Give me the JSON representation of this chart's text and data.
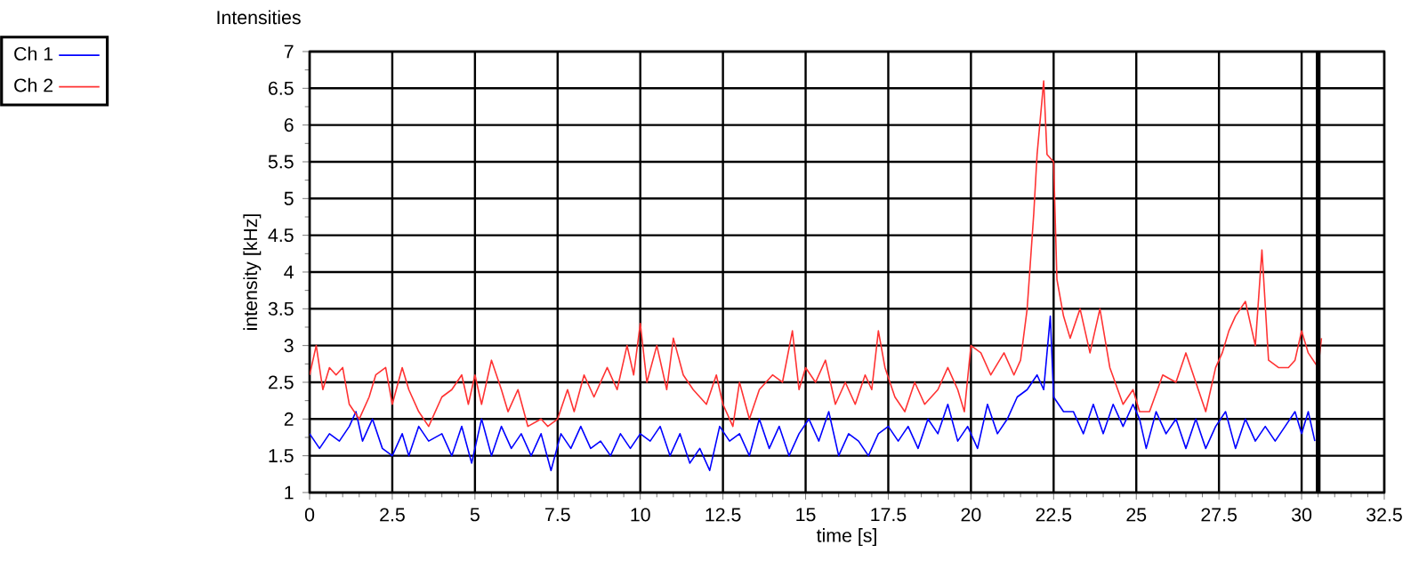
{
  "chart_data": {
    "type": "line",
    "title": "Intensities",
    "xlabel": "time [s]",
    "ylabel": "intensity [kHz]",
    "xlim": [
      0,
      32.5
    ],
    "ylim": [
      1,
      7
    ],
    "xticks": [
      0,
      2.5,
      5,
      7.5,
      10,
      12.5,
      15,
      17.5,
      20,
      22.5,
      25,
      27.5,
      30,
      32.5
    ],
    "yticks": [
      1,
      1.5,
      2,
      2.5,
      3,
      3.5,
      4,
      4.5,
      5,
      5.5,
      6,
      6.5,
      7
    ],
    "grid": true,
    "legend": "top left",
    "marker": "none",
    "line_style": "solid",
    "ref_lines": [
      {
        "axis": "x",
        "value": 30.5,
        "color": "#000000"
      }
    ],
    "series": [
      {
        "name": "Ch 1",
        "color": "#0000ff",
        "x": [
          0,
          0.3,
          0.6,
          0.9,
          1.2,
          1.4,
          1.6,
          1.9,
          2.2,
          2.5,
          2.8,
          3.0,
          3.3,
          3.6,
          4.0,
          4.3,
          4.6,
          4.9,
          5.2,
          5.5,
          5.8,
          6.1,
          6.4,
          6.7,
          7.0,
          7.3,
          7.6,
          7.9,
          8.2,
          8.5,
          8.8,
          9.1,
          9.4,
          9.7,
          10.0,
          10.3,
          10.6,
          10.9,
          11.2,
          11.5,
          11.8,
          12.1,
          12.4,
          12.7,
          13.0,
          13.3,
          13.6,
          13.9,
          14.2,
          14.5,
          14.8,
          15.1,
          15.4,
          15.7,
          16.0,
          16.3,
          16.6,
          16.9,
          17.2,
          17.5,
          17.8,
          18.1,
          18.4,
          18.7,
          19.0,
          19.3,
          19.6,
          19.9,
          20.2,
          20.5,
          20.8,
          21.1,
          21.4,
          21.7,
          22.0,
          22.2,
          22.4,
          22.5,
          22.8,
          23.1,
          23.4,
          23.7,
          24.0,
          24.3,
          24.6,
          24.9,
          25.1,
          25.3,
          25.6,
          25.9,
          26.2,
          26.5,
          26.8,
          27.1,
          27.4,
          27.7,
          28.0,
          28.3,
          28.6,
          28.9,
          29.2,
          29.5,
          29.8,
          30.0,
          30.2,
          30.4
        ],
        "values": [
          1.8,
          1.6,
          1.8,
          1.7,
          1.9,
          2.1,
          1.7,
          2.0,
          1.6,
          1.5,
          1.8,
          1.5,
          1.9,
          1.7,
          1.8,
          1.5,
          1.9,
          1.4,
          2.0,
          1.5,
          1.9,
          1.6,
          1.8,
          1.5,
          1.8,
          1.3,
          1.8,
          1.6,
          1.9,
          1.6,
          1.7,
          1.5,
          1.8,
          1.6,
          1.8,
          1.7,
          1.9,
          1.5,
          1.8,
          1.4,
          1.6,
          1.3,
          1.9,
          1.7,
          1.8,
          1.5,
          2.0,
          1.6,
          1.9,
          1.5,
          1.8,
          2.0,
          1.7,
          2.1,
          1.5,
          1.8,
          1.7,
          1.5,
          1.8,
          1.9,
          1.7,
          1.9,
          1.6,
          2.0,
          1.8,
          2.2,
          1.7,
          1.9,
          1.6,
          2.2,
          1.8,
          2.0,
          2.3,
          2.4,
          2.6,
          2.4,
          3.4,
          2.3,
          2.1,
          2.1,
          1.8,
          2.2,
          1.8,
          2.2,
          1.9,
          2.2,
          2.0,
          1.6,
          2.1,
          1.8,
          2.0,
          1.6,
          2.0,
          1.6,
          1.9,
          2.1,
          1.6,
          2.0,
          1.7,
          1.9,
          1.7,
          1.9,
          2.1,
          1.8,
          2.1,
          1.7
        ]
      },
      {
        "name": "Ch 2",
        "color": "#ff3333",
        "x": [
          0,
          0.2,
          0.4,
          0.6,
          0.8,
          1.0,
          1.2,
          1.5,
          1.8,
          2.0,
          2.3,
          2.5,
          2.8,
          3.0,
          3.3,
          3.6,
          4.0,
          4.3,
          4.6,
          4.8,
          5.0,
          5.2,
          5.5,
          5.8,
          6.0,
          6.3,
          6.6,
          7.0,
          7.2,
          7.5,
          7.8,
          8.0,
          8.3,
          8.6,
          9.0,
          9.3,
          9.6,
          9.8,
          10.0,
          10.2,
          10.5,
          10.8,
          11.0,
          11.3,
          11.6,
          12.0,
          12.3,
          12.5,
          12.8,
          13.0,
          13.3,
          13.6,
          14.0,
          14.3,
          14.6,
          14.8,
          15.0,
          15.3,
          15.6,
          15.9,
          16.2,
          16.5,
          16.8,
          17.0,
          17.2,
          17.4,
          17.7,
          18.0,
          18.3,
          18.6,
          19.0,
          19.3,
          19.6,
          19.8,
          20.0,
          20.3,
          20.6,
          21.0,
          21.3,
          21.5,
          21.7,
          21.9,
          22.0,
          22.2,
          22.3,
          22.5,
          22.6,
          22.8,
          23.0,
          23.3,
          23.6,
          23.9,
          24.2,
          24.6,
          24.9,
          25.1,
          25.4,
          25.8,
          26.2,
          26.5,
          26.8,
          27.1,
          27.4,
          27.6,
          27.8,
          28.0,
          28.3,
          28.6,
          28.8,
          29.0,
          29.3,
          29.6,
          29.8,
          30.0,
          30.2,
          30.5,
          30.6
        ],
        "values": [
          2.6,
          3.0,
          2.4,
          2.7,
          2.6,
          2.7,
          2.2,
          2.0,
          2.3,
          2.6,
          2.7,
          2.2,
          2.7,
          2.4,
          2.1,
          1.9,
          2.3,
          2.4,
          2.6,
          2.2,
          2.6,
          2.2,
          2.8,
          2.4,
          2.1,
          2.4,
          1.9,
          2.0,
          1.9,
          2.0,
          2.4,
          2.1,
          2.6,
          2.3,
          2.7,
          2.4,
          3.0,
          2.6,
          3.3,
          2.5,
          3.0,
          2.4,
          3.1,
          2.6,
          2.4,
          2.2,
          2.6,
          2.2,
          1.9,
          2.5,
          2.0,
          2.4,
          2.6,
          2.5,
          3.2,
          2.4,
          2.7,
          2.5,
          2.8,
          2.2,
          2.5,
          2.2,
          2.6,
          2.4,
          3.2,
          2.7,
          2.3,
          2.1,
          2.5,
          2.2,
          2.4,
          2.7,
          2.4,
          2.1,
          3.0,
          2.9,
          2.6,
          2.9,
          2.6,
          2.8,
          3.5,
          4.8,
          5.6,
          6.6,
          5.6,
          5.5,
          3.9,
          3.4,
          3.1,
          3.5,
          2.9,
          3.5,
          2.7,
          2.2,
          2.4,
          2.1,
          2.1,
          2.6,
          2.5,
          2.9,
          2.5,
          2.1,
          2.7,
          2.9,
          3.2,
          3.4,
          3.6,
          3.0,
          4.3,
          2.8,
          2.7,
          2.7,
          2.8,
          3.2,
          2.9,
          2.7,
          3.1
        ]
      }
    ]
  }
}
